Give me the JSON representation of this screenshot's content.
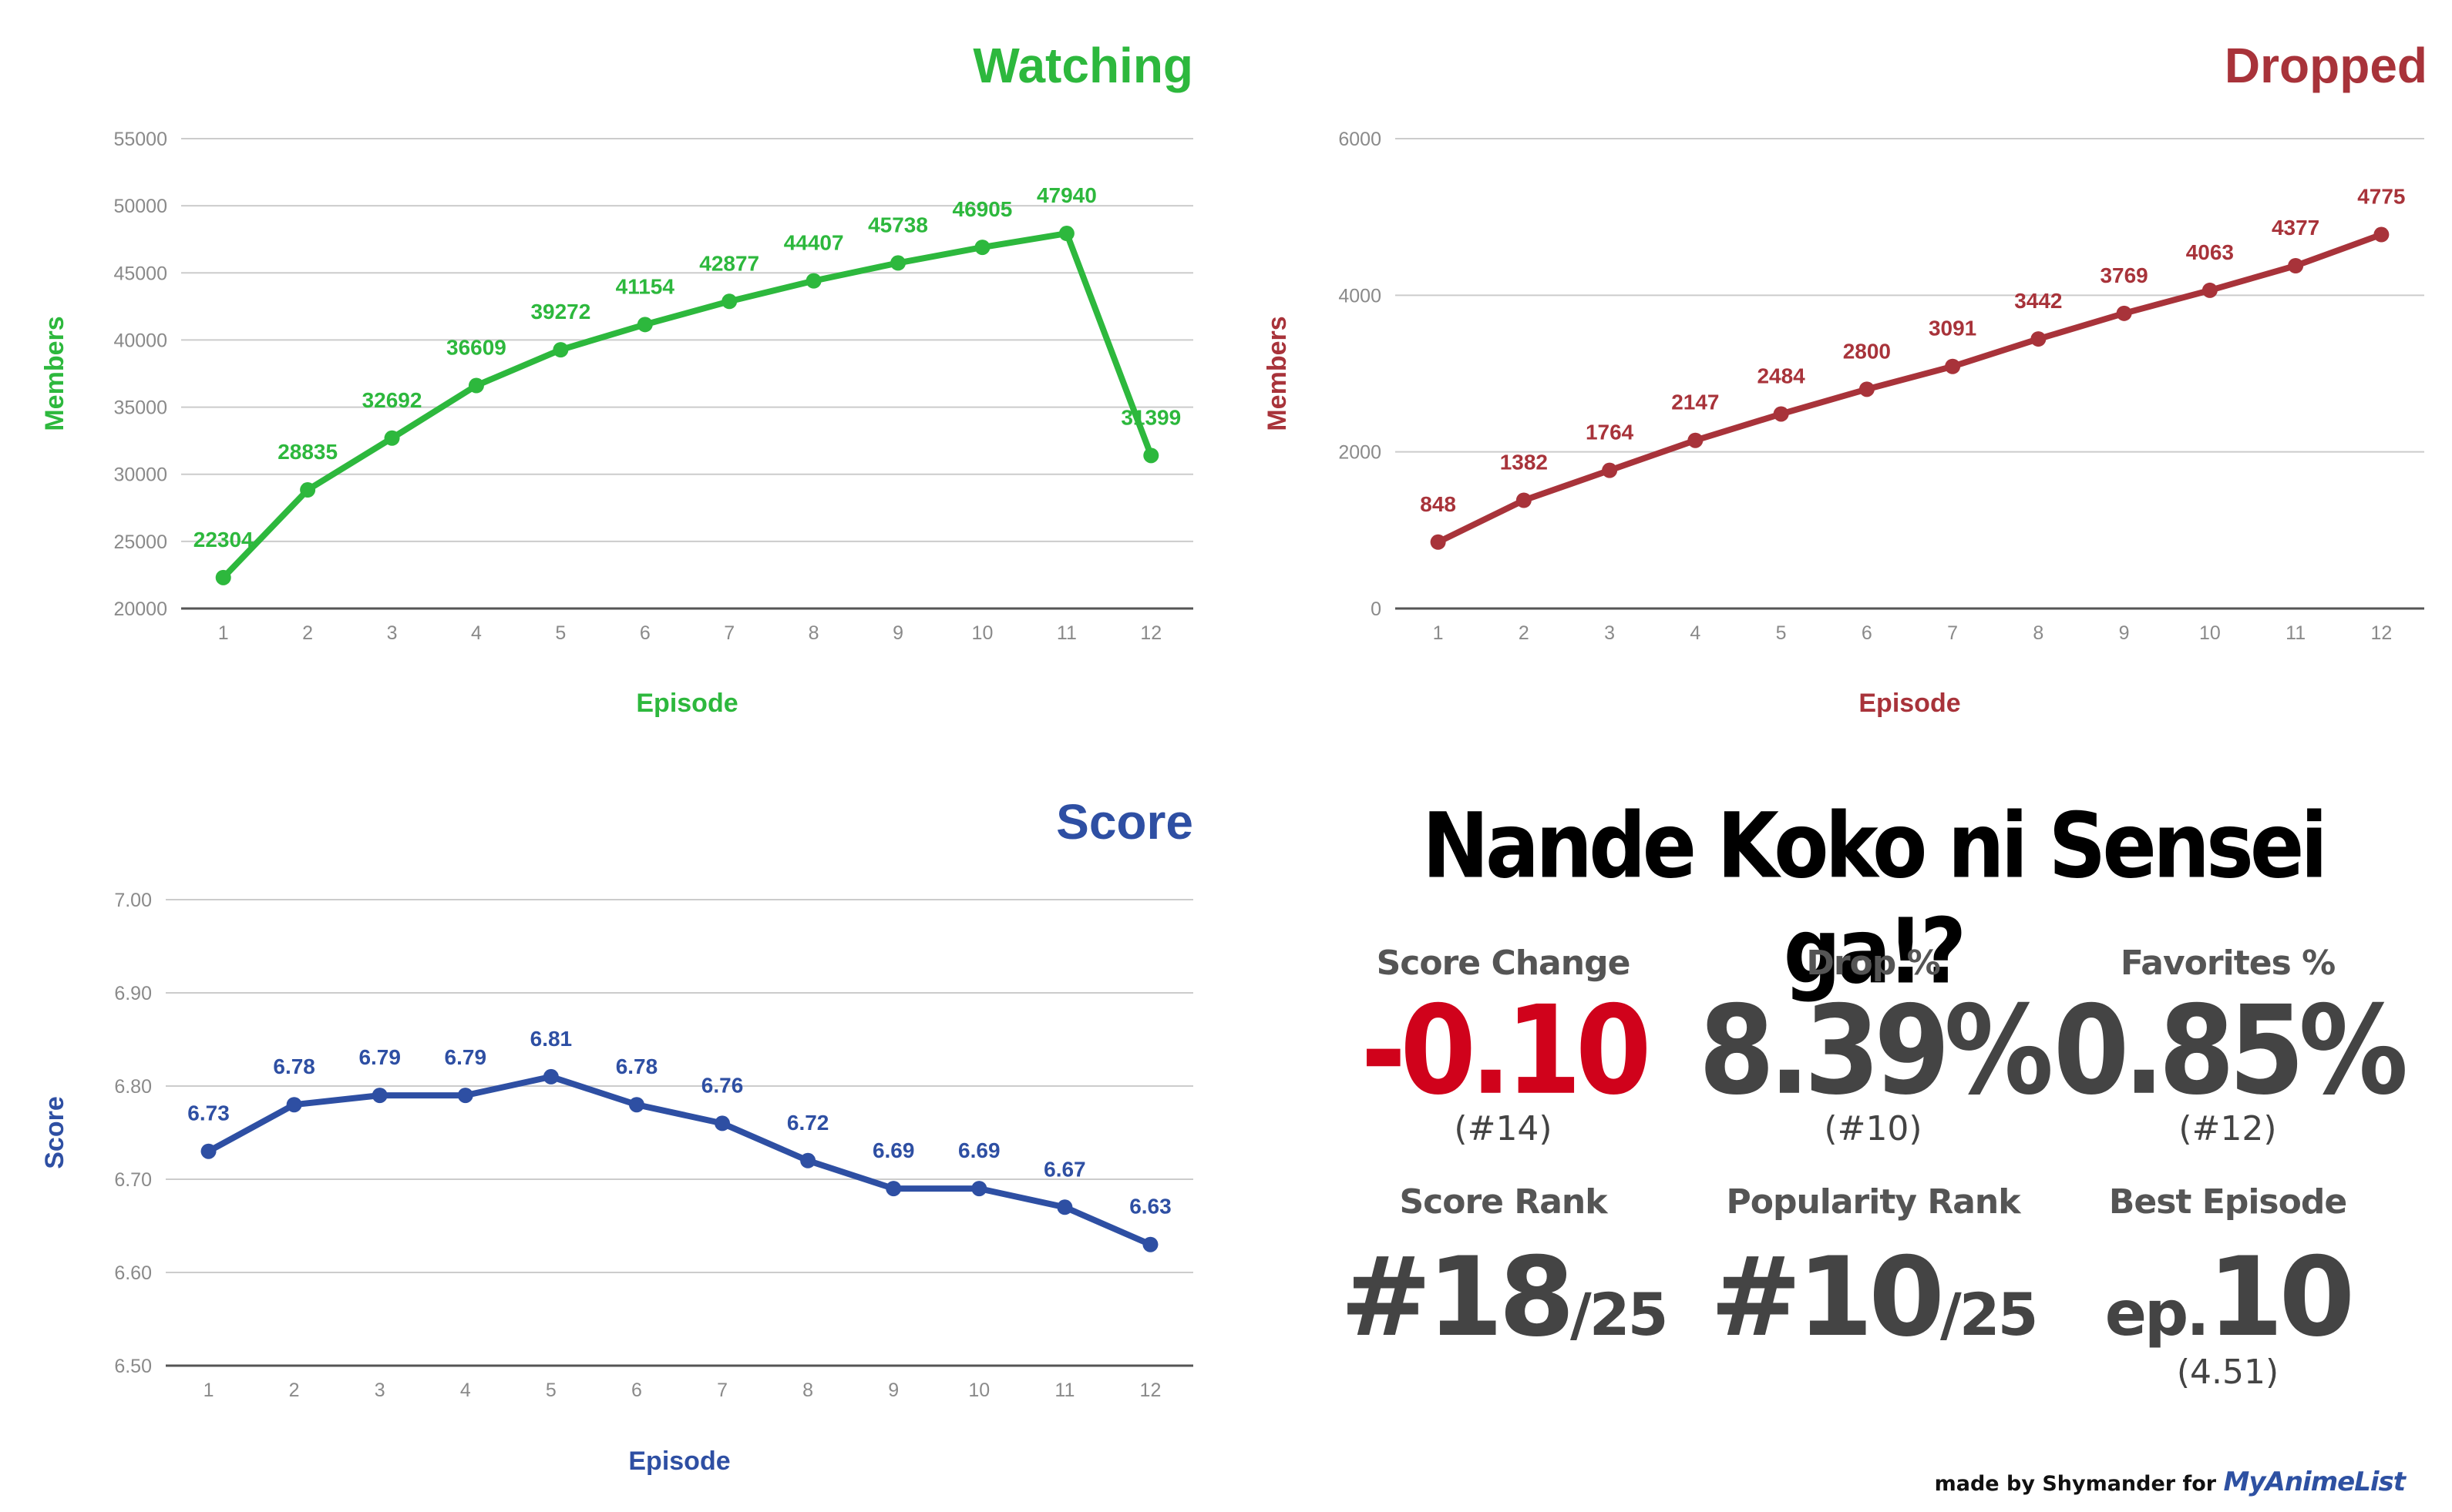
{
  "charts": [
    {
      "id": "watching",
      "title": "Watching",
      "color": "#2db83d",
      "xlabel": "Episode",
      "ylabel": "Members"
    },
    {
      "id": "dropped",
      "title": "Dropped",
      "color": "#a8333a",
      "xlabel": "Episode",
      "ylabel": "Members"
    },
    {
      "id": "score",
      "title": "Score",
      "color": "#2e4fa3",
      "xlabel": "Episode",
      "ylabel": "Score"
    }
  ],
  "chart_data": [
    {
      "type": "line",
      "title": "Watching",
      "xlabel": "Episode",
      "ylabel": "Members",
      "x": [
        1,
        2,
        3,
        4,
        5,
        6,
        7,
        8,
        9,
        10,
        11,
        12
      ],
      "values": [
        22304,
        28835,
        32692,
        36609,
        39272,
        41154,
        42877,
        44407,
        45738,
        46905,
        47940,
        31399
      ],
      "ylim": [
        20000,
        55000
      ],
      "yticks": [
        20000,
        25000,
        30000,
        35000,
        40000,
        45000,
        50000,
        55000
      ],
      "ytick_labels": [
        "20000",
        "25000",
        "30000",
        "35000",
        "40000",
        "45000",
        "50000",
        "55000"
      ],
      "grid": true,
      "color": "#2db83d"
    },
    {
      "type": "line",
      "title": "Dropped",
      "xlabel": "Episode",
      "ylabel": "Members",
      "x": [
        1,
        2,
        3,
        4,
        5,
        6,
        7,
        8,
        9,
        10,
        11,
        12
      ],
      "values": [
        848,
        1382,
        1764,
        2147,
        2484,
        2800,
        3091,
        3442,
        3769,
        4063,
        4377,
        4775
      ],
      "ylim": [
        0,
        6000
      ],
      "yticks": [
        0,
        2000,
        4000,
        6000
      ],
      "ytick_labels": [
        "0",
        "2000",
        "4000",
        "6000"
      ],
      "grid": true,
      "color": "#a8333a"
    },
    {
      "type": "line",
      "title": "Score",
      "xlabel": "Episode",
      "ylabel": "Score",
      "x": [
        1,
        2,
        3,
        4,
        5,
        6,
        7,
        8,
        9,
        10,
        11,
        12
      ],
      "values": [
        6.73,
        6.78,
        6.79,
        6.79,
        6.81,
        6.78,
        6.76,
        6.72,
        6.69,
        6.69,
        6.67,
        6.63
      ],
      "value_labels": [
        "6.73",
        "6.78",
        "6.79",
        "6.79",
        "6.81",
        "6.78",
        "6.76",
        "6.72",
        "6.69",
        "6.69",
        "6.67",
        "6.63"
      ],
      "ylim": [
        6.5,
        7.0
      ],
      "yticks": [
        6.5,
        6.6,
        6.7,
        6.8,
        6.9,
        7.0
      ],
      "ytick_labels": [
        "6.50",
        "6.60",
        "6.70",
        "6.80",
        "6.90",
        "7.00"
      ],
      "grid": true,
      "color": "#2e4fa3"
    }
  ],
  "info": {
    "anime_title": "Nande Koko ni Sensei ga!?",
    "score_change": {
      "label": "Score Change",
      "value": "-0.10",
      "rank": "(#14)",
      "color": "#d0021b"
    },
    "drop_pct": {
      "label": "Drop %",
      "value": "8.39%",
      "rank": "(#10)"
    },
    "favorites_pct": {
      "label": "Favorites %",
      "value": "0.85%",
      "rank": "(#12)"
    },
    "score_rank": {
      "label": "Score Rank",
      "value": "#18",
      "denominator": "/25"
    },
    "popularity_rank": {
      "label": "Popularity Rank",
      "value": "#10",
      "denominator": "/25"
    },
    "best_episode": {
      "label": "Best Episode",
      "prefix": "ep.",
      "value": "10",
      "score": "(4.51)"
    }
  },
  "credit": {
    "text": "made by Shymander for",
    "brand": "MyAnimeList"
  }
}
